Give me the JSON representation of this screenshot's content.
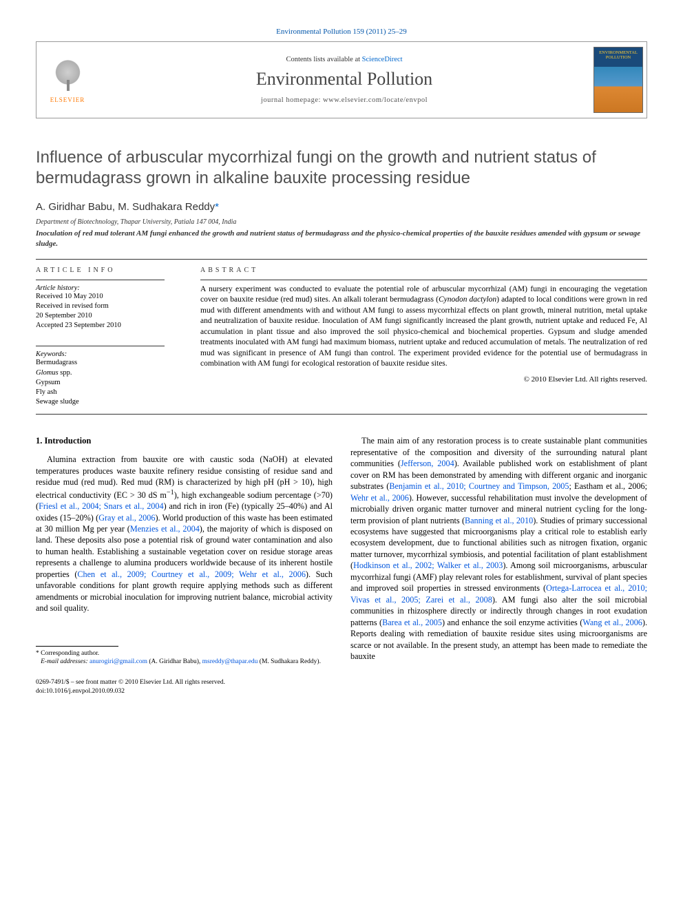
{
  "journal_ref": "Environmental Pollution 159 (2011) 25–29",
  "header": {
    "contents_prefix": "Contents lists available at ",
    "contents_link": "ScienceDirect",
    "journal_name": "Environmental Pollution",
    "homepage_prefix": "journal homepage: ",
    "homepage_url": "www.elsevier.com/locate/envpol",
    "elsevier_label": "ELSEVIER",
    "cover_title": "ENVIRONMENTAL POLLUTION"
  },
  "title": "Influence of arbuscular mycorrhizal fungi on the growth and nutrient status of bermudagrass grown in alkaline bauxite processing residue",
  "authors_html": "A. Giridhar Babu, M. Sudhakara Reddy",
  "corr_mark": "*",
  "affiliation": "Department of Biotechnology, Thapar University, Patiala 147 004, India",
  "highlight": "Inoculation of red mud tolerant AM fungi enhanced the growth and nutrient status of bermudagrass and the physico-chemical properties of the bauxite residues amended with gypsum or sewage sludge.",
  "info": {
    "heading": "ARTICLE INFO",
    "history_label": "Article history:",
    "history": [
      "Received 10 May 2010",
      "Received in revised form",
      "20 September 2010",
      "Accepted 23 September 2010"
    ],
    "keywords_label": "Keywords:",
    "keywords": [
      "Bermudagrass",
      "Glomus spp.",
      "Gypsum",
      "Fly ash",
      "Sewage sludge"
    ]
  },
  "abstract": {
    "heading": "ABSTRACT",
    "text_parts": [
      "A nursery experiment was conducted to evaluate the potential role of arbuscular mycorrhizal (AM) fungi in encouraging the vegetation cover on bauxite residue (red mud) sites. An alkali tolerant bermudagrass (",
      "Cynodon dactylon",
      ") adapted to local conditions were grown in red mud with different amendments with and without AM fungi to assess mycorrhizal effects on plant growth, mineral nutrition, metal uptake and neutralization of bauxite residue. Inoculation of AM fungi significantly increased the plant growth, nutrient uptake and reduced Fe, Al accumulation in plant tissue and also improved the soil physico-chemical and biochemical properties. Gypsum and sludge amended treatments inoculated with AM fungi had maximum biomass, nutrient uptake and reduced accumulation of metals. The neutralization of red mud was significant in presence of AM fungi than control. The experiment provided evidence for the potential use of bermudagrass in combination with AM fungi for ecological restoration of bauxite residue sites."
    ],
    "copyright": "© 2010 Elsevier Ltd. All rights reserved."
  },
  "sections": {
    "intro_heading": "1. Introduction",
    "intro_para1_parts": [
      {
        "t": "Alumina extraction from bauxite ore with caustic soda (NaOH) at elevated temperatures produces waste bauxite refinery residue consisting of residue sand and residue mud (red mud). Red mud (RM) is characterized by high pH (pH > 10), high electrical conductivity (EC > 30 dS m"
      },
      {
        "sup": "−1"
      },
      {
        "t": "), high exchangeable sodium percentage (>70) ("
      },
      {
        "link": "Friesl et al., 2004; Snars et al., 2004"
      },
      {
        "t": ") and rich in iron (Fe) (typically 25–40%) and Al oxides (15–20%) ("
      },
      {
        "link": "Gray et al., 2006"
      },
      {
        "t": "). World production of this waste has been estimated at 30 million Mg per year ("
      },
      {
        "link": "Menzies et al., 2004"
      },
      {
        "t": "), the majority of which is disposed on land. These deposits also pose a potential risk of ground water contamination and also to human health. Establishing a sustainable vegetation cover on residue storage areas represents a challenge to alumina producers worldwide because of its inherent hostile properties ("
      },
      {
        "link": "Chen et al., 2009; Courtney et al., 2009; Wehr et al., 2006"
      },
      {
        "t": "). Such unfavorable conditions for plant growth require applying methods such as different amendments or microbial inoculation for improving nutrient balance, microbial activity and soil quality."
      }
    ],
    "intro_para2_parts": [
      {
        "t": "The main aim of any restoration process is to create sustainable plant communities representative of the composition and diversity of the surrounding natural plant communities ("
      },
      {
        "link": "Jefferson, 2004"
      },
      {
        "t": "). Available published work on establishment of plant cover on RM has been demonstrated by amending with different organic and inorganic substrates ("
      },
      {
        "link": "Benjamin et al., 2010; Courtney and Timpson, 2005"
      },
      {
        "t": "; Eastham et al., 2006; "
      },
      {
        "link": "Wehr et al., 2006"
      },
      {
        "t": "). However, successful rehabilitation must involve the development of microbially driven organic matter turnover and mineral nutrient cycling for the long-term provision of plant nutrients ("
      },
      {
        "link": "Banning et al., 2010"
      },
      {
        "t": "). Studies of primary successional ecosystems have suggested that microorganisms play a critical role to establish early ecosystem development, due to functional abilities such as nitrogen fixation, organic matter turnover, mycorrhizal symbiosis, and potential facilitation of plant establishment ("
      },
      {
        "link": "Hodkinson et al., 2002; Walker et al., 2003"
      },
      {
        "t": "). Among soil microorganisms, arbuscular mycorrhizal fungi (AMF) play relevant roles for establishment, survival of plant species and improved soil properties in stressed environments ("
      },
      {
        "link": "Ortega-Larrocea et al., 2010; Vivas et al., 2005; Zarei et al., 2008"
      },
      {
        "t": "). AM fungi also alter the soil microbial communities in rhizosphere directly or indirectly through changes in root exudation patterns ("
      },
      {
        "link": "Barea et al., 2005"
      },
      {
        "t": ") and enhance the soil enzyme activities ("
      },
      {
        "link": "Wang et al., 2006"
      },
      {
        "t": "). Reports dealing with remediation of bauxite residue sites using microorganisms are scarce or not available. In the present study, an attempt has been made to remediate the bauxite"
      }
    ]
  },
  "footnote": {
    "corr_label": "* Corresponding author.",
    "email_label": "E-mail addresses:",
    "email1": "anurogiri@gmail.com",
    "email1_who": "(A. Giridhar Babu),",
    "email2": "msreddy@thapar.edu",
    "email2_who": "(M. Sudhakara Reddy)."
  },
  "bottom": {
    "line1": "0269-7491/$ – see front matter © 2010 Elsevier Ltd. All rights reserved.",
    "line2": "doi:10.1016/j.envpol.2010.09.032"
  },
  "colors": {
    "link": "#0055dd",
    "title_gray": "#505050",
    "elsevier_orange": "#ff7700"
  }
}
